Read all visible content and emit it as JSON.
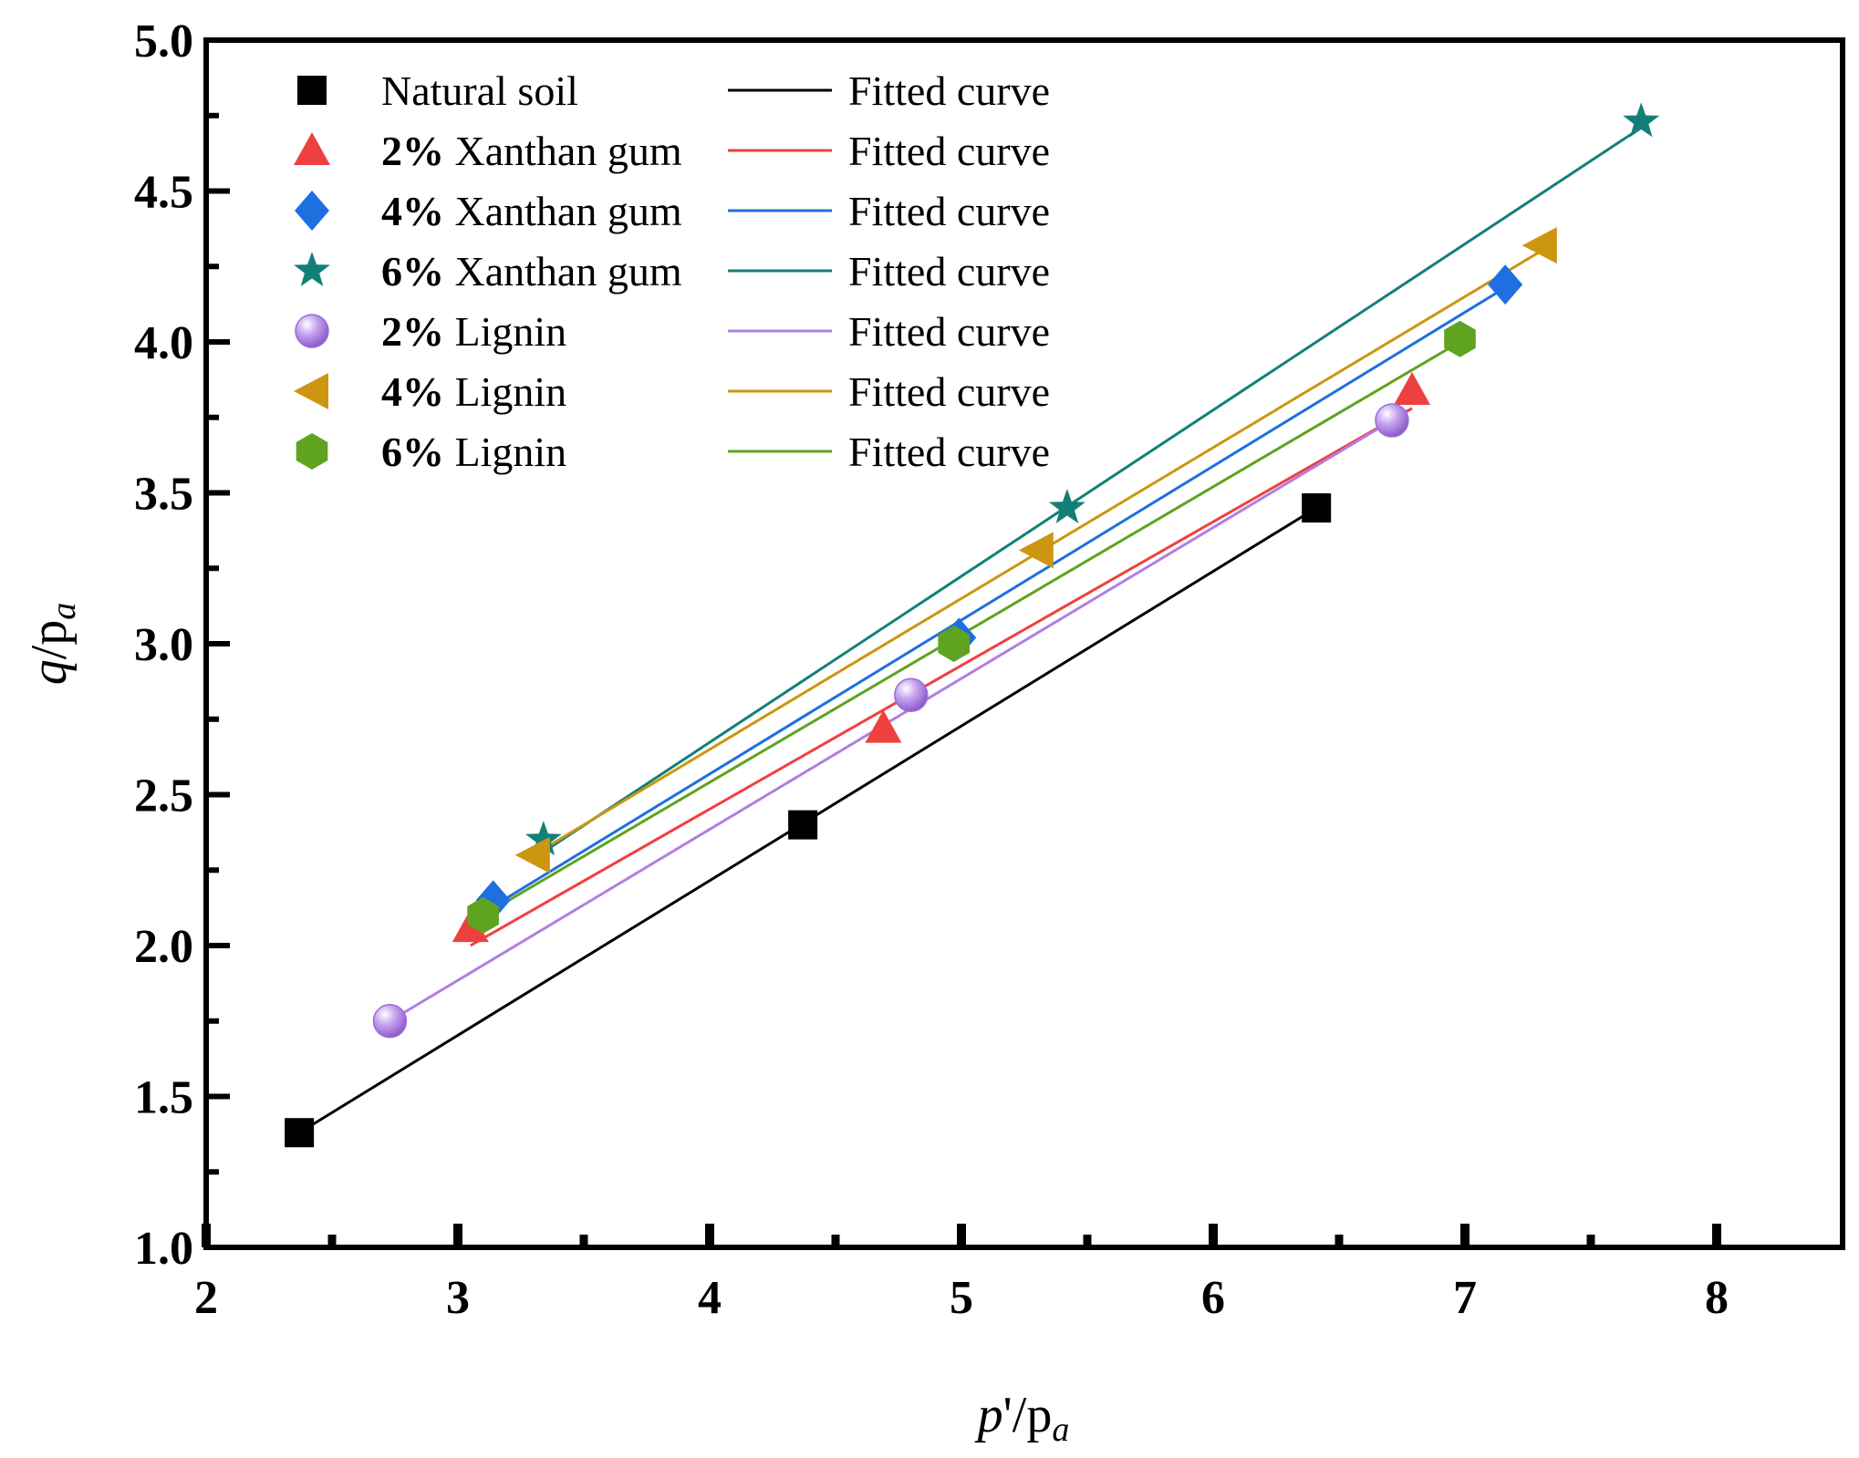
{
  "chart_data": {
    "type": "scatter",
    "xlabel": {
      "italic": "p",
      "rest": "'/p",
      "sub": "a"
    },
    "ylabel": {
      "italic": "q",
      "rest": "/p",
      "sub": "a"
    },
    "xlim": [
      2,
      8.5
    ],
    "ylim": [
      1.0,
      5.0
    ],
    "xticks": [
      "2",
      "3",
      "4",
      "5",
      "6",
      "7",
      "8"
    ],
    "yticks": [
      "1.0",
      "1.5",
      "2.0",
      "2.5",
      "3.0",
      "3.5",
      "4.0",
      "4.5",
      "5.0"
    ],
    "fit_label": "Fitted curve",
    "legend_position": "top-left",
    "series": [
      {
        "name_bold": "",
        "name_rest": "Natural soil",
        "marker": "square",
        "color": "#000000",
        "x": [
          2.37,
          4.37,
          6.41
        ],
        "y": [
          1.38,
          2.4,
          3.45
        ],
        "fit": {
          "x": [
            2.37,
            6.41
          ],
          "y": [
            1.38,
            3.45
          ]
        }
      },
      {
        "name_bold": "2%",
        "name_rest": " Xanthan gum",
        "marker": "triangle-up",
        "color": "#ef4040",
        "x": [
          3.05,
          4.69,
          6.79
        ],
        "y": [
          2.06,
          2.72,
          3.84
        ],
        "fit": {
          "x": [
            3.05,
            6.79
          ],
          "y": [
            2.0,
            3.78
          ]
        }
      },
      {
        "name_bold": "4%",
        "name_rest": " Xanthan gum",
        "marker": "diamond",
        "color": "#1e6fe0",
        "x": [
          3.14,
          4.99,
          7.16
        ],
        "y": [
          2.15,
          3.02,
          4.19
        ],
        "fit": {
          "x": [
            3.14,
            7.16
          ],
          "y": [
            2.13,
            4.18
          ]
        }
      },
      {
        "name_bold": "6%",
        "name_rest": " Xanthan gum",
        "marker": "star",
        "color": "#138078",
        "x": [
          3.34,
          5.42,
          7.7
        ],
        "y": [
          2.35,
          3.45,
          4.73
        ],
        "fit": {
          "x": [
            3.34,
            7.7
          ],
          "y": [
            2.31,
            4.71
          ]
        }
      },
      {
        "name_bold": "2%",
        "name_rest": " Lignin",
        "marker": "sphere",
        "color": "#b07ee6",
        "x": [
          2.73,
          4.8,
          6.71
        ],
        "y": [
          1.75,
          2.83,
          3.74
        ],
        "fit": {
          "x": [
            2.73,
            6.71
          ],
          "y": [
            1.75,
            3.74
          ]
        }
      },
      {
        "name_bold": "4%",
        "name_rest": " Lignin",
        "marker": "triangle-left",
        "color": "#cc9611",
        "x": [
          3.3,
          5.3,
          7.3
        ],
        "y": [
          2.3,
          3.31,
          4.32
        ],
        "fit": {
          "x": [
            3.3,
            7.3
          ],
          "y": [
            2.3,
            4.3
          ]
        }
      },
      {
        "name_bold": "6%",
        "name_rest": " Lignin",
        "marker": "hexagon",
        "color": "#5fa321",
        "x": [
          3.1,
          4.97,
          6.98
        ],
        "y": [
          2.1,
          3.0,
          4.01
        ],
        "fit": {
          "x": [
            3.1,
            6.98
          ],
          "y": [
            2.1,
            4.0
          ]
        }
      }
    ]
  }
}
